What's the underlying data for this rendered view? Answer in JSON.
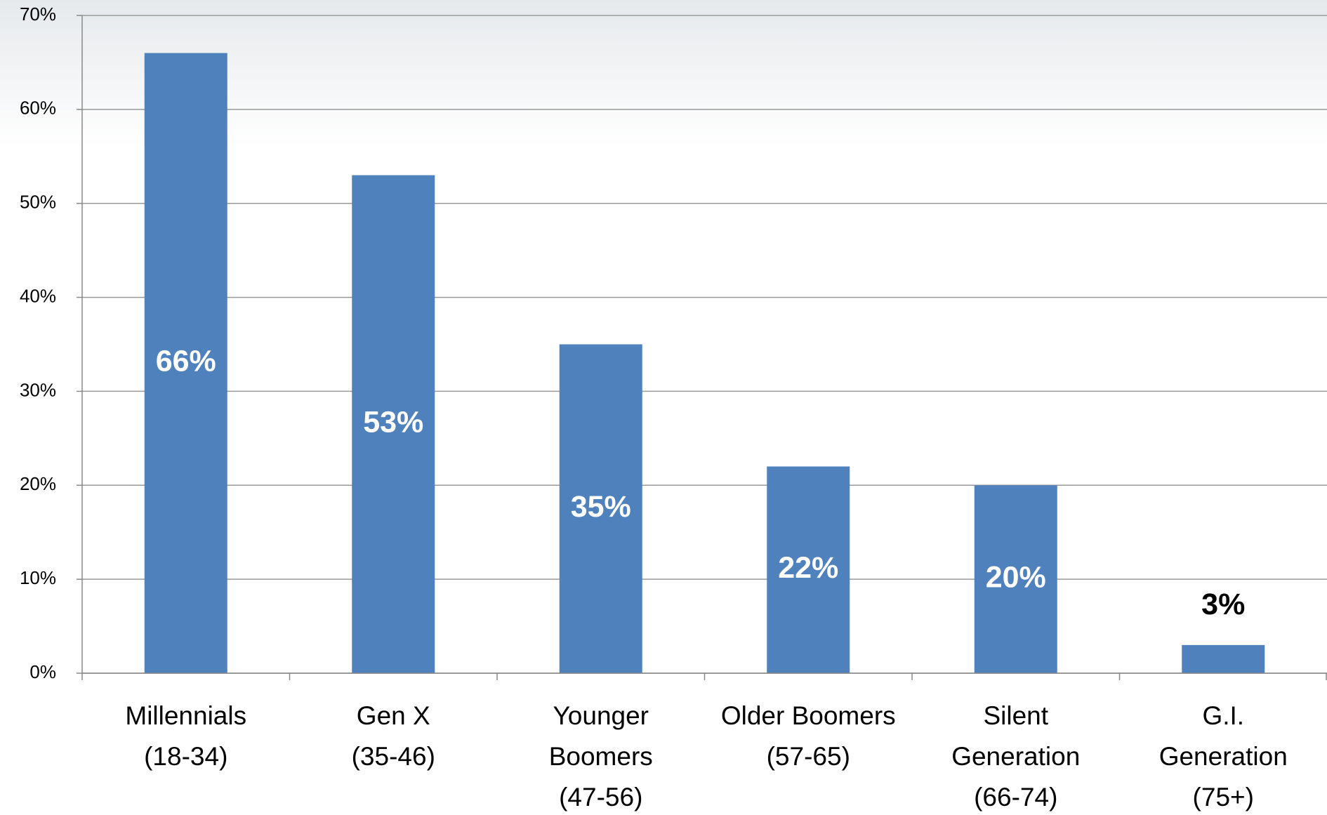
{
  "chart_data": {
    "type": "bar",
    "categories": [
      [
        "Millennials",
        "(18-34)"
      ],
      [
        "Gen X",
        "(35-46)"
      ],
      [
        "Younger",
        "Boomers",
        "(47-56)"
      ],
      [
        "Older Boomers",
        "(57-65)"
      ],
      [
        "Silent",
        "Generation",
        "(66-74)"
      ],
      [
        "G.I.",
        "Generation",
        "(75+)"
      ]
    ],
    "values": [
      66,
      53,
      35,
      22,
      20,
      3
    ],
    "value_labels": [
      "66%",
      "53%",
      "35%",
      "22%",
      "20%",
      "3%"
    ],
    "color": "#4f81bd",
    "ylim": [
      0,
      70
    ],
    "yticks": [
      {
        "value": 0,
        "label": "0%"
      },
      {
        "value": 10,
        "label": "10%"
      },
      {
        "value": 20,
        "label": "20%"
      },
      {
        "value": 30,
        "label": "30%"
      },
      {
        "value": 40,
        "label": "40%"
      },
      {
        "value": 50,
        "label": "50%"
      },
      {
        "value": 60,
        "label": "60%"
      },
      {
        "value": 70,
        "label": "70%"
      }
    ],
    "grid": true
  }
}
